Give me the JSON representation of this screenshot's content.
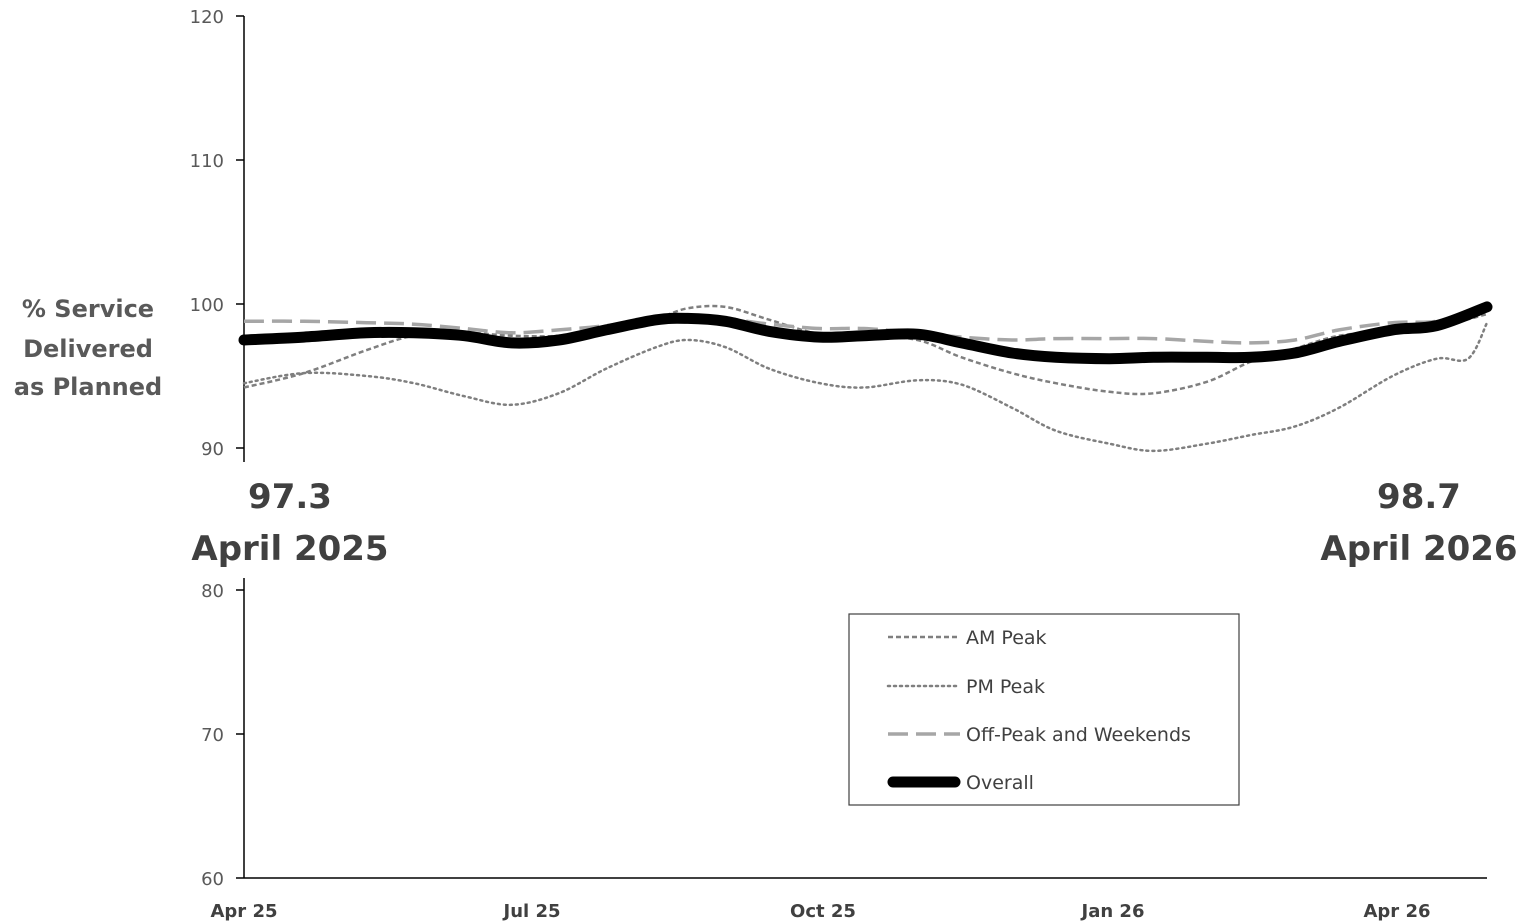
{
  "chart_data": {
    "type": "line",
    "ylabel_lines": [
      "% Service",
      "Delivered",
      "as Planned"
    ],
    "x_ticks": [
      "Apr 25",
      "Jul 25",
      "Oct 25",
      "Jan 26",
      "Apr 26"
    ],
    "x_range": [
      "2025-04-01",
      "2026-05-01"
    ],
    "upper_panel": {
      "ylim": [
        90,
        120
      ],
      "yticks": [
        90,
        100,
        110,
        120
      ]
    },
    "lower_panel": {
      "ylim": [
        60,
        80
      ],
      "yticks": [
        60,
        70,
        80
      ]
    },
    "grid": false,
    "legend_position": "inside lower panel, right of center",
    "annotations": [
      {
        "value": "97.3",
        "label": "April 2025"
      },
      {
        "value": "98.7",
        "label": "April 2026"
      }
    ],
    "series": [
      {
        "name": "AM Peak",
        "color": "#7f7f7f",
        "style": "dashed",
        "points": [
          [
            "2025-04-01",
            94.2
          ],
          [
            "2025-04-20",
            95.2
          ],
          [
            "2025-05-10",
            96.8
          ],
          [
            "2025-05-25",
            97.8
          ],
          [
            "2025-06-10",
            98.0
          ],
          [
            "2025-06-25",
            97.8
          ],
          [
            "2025-07-10",
            97.8
          ],
          [
            "2025-07-25",
            98.3
          ],
          [
            "2025-08-10",
            99.0
          ],
          [
            "2025-08-20",
            99.7
          ],
          [
            "2025-09-01",
            99.8
          ],
          [
            "2025-09-15",
            98.9
          ],
          [
            "2025-10-01",
            97.9
          ],
          [
            "2025-10-15",
            97.8
          ],
          [
            "2025-11-01",
            97.5
          ],
          [
            "2025-11-15",
            96.3
          ],
          [
            "2025-12-01",
            95.2
          ],
          [
            "2025-12-15",
            94.5
          ],
          [
            "2026-01-01",
            93.9
          ],
          [
            "2026-01-15",
            93.8
          ],
          [
            "2026-02-01",
            94.6
          ],
          [
            "2026-02-15",
            96.0
          ],
          [
            "2026-03-01",
            96.9
          ],
          [
            "2026-03-15",
            97.8
          ],
          [
            "2026-04-01",
            98.1
          ],
          [
            "2026-04-15",
            98.4
          ],
          [
            "2026-05-01",
            99.3
          ]
        ]
      },
      {
        "name": "PM Peak",
        "color": "#7f7f7f",
        "style": "dotted",
        "points": [
          [
            "2025-04-01",
            94.5
          ],
          [
            "2025-04-20",
            95.2
          ],
          [
            "2025-05-10",
            95.0
          ],
          [
            "2025-05-25",
            94.5
          ],
          [
            "2025-06-10",
            93.6
          ],
          [
            "2025-06-25",
            93.0
          ],
          [
            "2025-07-10",
            93.8
          ],
          [
            "2025-07-25",
            95.5
          ],
          [
            "2025-08-10",
            97.0
          ],
          [
            "2025-08-20",
            97.5
          ],
          [
            "2025-09-01",
            97.0
          ],
          [
            "2025-09-15",
            95.5
          ],
          [
            "2025-10-01",
            94.5
          ],
          [
            "2025-10-15",
            94.2
          ],
          [
            "2025-11-01",
            94.7
          ],
          [
            "2025-11-15",
            94.4
          ],
          [
            "2025-12-01",
            92.8
          ],
          [
            "2025-12-15",
            91.2
          ],
          [
            "2026-01-01",
            90.3
          ],
          [
            "2026-01-15",
            89.8
          ],
          [
            "2026-02-01",
            90.3
          ],
          [
            "2026-02-15",
            90.9
          ],
          [
            "2026-03-01",
            91.5
          ],
          [
            "2026-03-15",
            92.8
          ],
          [
            "2026-04-01",
            95.0
          ],
          [
            "2026-04-15",
            96.2
          ],
          [
            "2026-04-25",
            96.2
          ],
          [
            "2026-05-01",
            98.7
          ]
        ]
      },
      {
        "name": "Off-Peak and Weekends",
        "color": "#a6a6a6",
        "style": "long-dash",
        "points": [
          [
            "2025-04-01",
            98.8
          ],
          [
            "2025-04-20",
            98.8
          ],
          [
            "2025-05-10",
            98.7
          ],
          [
            "2025-05-25",
            98.6
          ],
          [
            "2025-06-10",
            98.3
          ],
          [
            "2025-06-25",
            98.0
          ],
          [
            "2025-07-10",
            98.2
          ],
          [
            "2025-07-25",
            98.5
          ],
          [
            "2025-08-10",
            99.0
          ],
          [
            "2025-08-20",
            99.2
          ],
          [
            "2025-09-01",
            99.0
          ],
          [
            "2025-09-15",
            98.6
          ],
          [
            "2025-10-01",
            98.3
          ],
          [
            "2025-10-15",
            98.3
          ],
          [
            "2025-11-01",
            98.0
          ],
          [
            "2025-11-15",
            97.7
          ],
          [
            "2025-12-01",
            97.5
          ],
          [
            "2025-12-15",
            97.6
          ],
          [
            "2026-01-01",
            97.6
          ],
          [
            "2026-01-15",
            97.6
          ],
          [
            "2026-02-01",
            97.4
          ],
          [
            "2026-02-15",
            97.3
          ],
          [
            "2026-03-01",
            97.5
          ],
          [
            "2026-03-15",
            98.2
          ],
          [
            "2026-04-01",
            98.7
          ],
          [
            "2026-04-15",
            98.8
          ],
          [
            "2026-05-01",
            99.6
          ]
        ]
      },
      {
        "name": "Overall",
        "color": "#000000",
        "style": "solid-thick",
        "points": [
          [
            "2025-04-01",
            97.5
          ],
          [
            "2025-04-20",
            97.7
          ],
          [
            "2025-05-10",
            98.0
          ],
          [
            "2025-05-25",
            98.0
          ],
          [
            "2025-06-10",
            97.8
          ],
          [
            "2025-06-25",
            97.3
          ],
          [
            "2025-07-10",
            97.5
          ],
          [
            "2025-07-25",
            98.2
          ],
          [
            "2025-08-10",
            98.9
          ],
          [
            "2025-08-20",
            99.0
          ],
          [
            "2025-09-01",
            98.8
          ],
          [
            "2025-09-15",
            98.1
          ],
          [
            "2025-10-01",
            97.7
          ],
          [
            "2025-10-15",
            97.8
          ],
          [
            "2025-11-01",
            97.9
          ],
          [
            "2025-11-15",
            97.3
          ],
          [
            "2025-12-01",
            96.6
          ],
          [
            "2025-12-15",
            96.3
          ],
          [
            "2026-01-01",
            96.2
          ],
          [
            "2026-01-15",
            96.3
          ],
          [
            "2026-02-01",
            96.3
          ],
          [
            "2026-02-15",
            96.3
          ],
          [
            "2026-03-01",
            96.6
          ],
          [
            "2026-03-15",
            97.4
          ],
          [
            "2026-04-01",
            98.2
          ],
          [
            "2026-04-15",
            98.5
          ],
          [
            "2026-05-01",
            99.8
          ]
        ]
      }
    ]
  }
}
